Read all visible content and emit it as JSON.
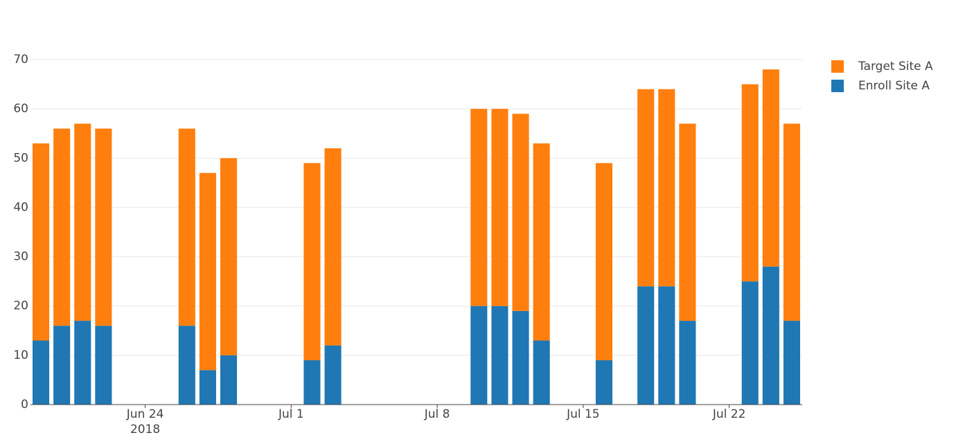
{
  "chart_data": {
    "type": "bar",
    "stacked": true,
    "x": [
      "2018-06-19",
      "2018-06-20",
      "2018-06-21",
      "2018-06-22",
      "2018-06-26",
      "2018-06-27",
      "2018-06-28",
      "2018-07-02",
      "2018-07-03",
      "2018-07-10",
      "2018-07-11",
      "2018-07-12",
      "2018-07-13",
      "2018-07-16",
      "2018-07-18",
      "2018-07-19",
      "2018-07-20",
      "2018-07-23",
      "2018-07-24",
      "2018-07-25"
    ],
    "series": [
      {
        "name": "Enroll Site A",
        "color": "#1f77b4",
        "values": [
          13,
          16,
          17,
          16,
          16,
          7,
          10,
          9,
          12,
          20,
          20,
          19,
          13,
          9,
          24,
          24,
          17,
          25,
          28,
          17
        ]
      },
      {
        "name": "Target Site A",
        "color": "#ff7f0e",
        "values": [
          40,
          40,
          40,
          40,
          40,
          40,
          40,
          40,
          40,
          40,
          40,
          40,
          40,
          40,
          40,
          40,
          40,
          40,
          40,
          40
        ]
      }
    ],
    "xlim": [
      "2018-06-18 12:00",
      "2018-07-25 12:00"
    ],
    "xticks": [
      {
        "value": "2018-06-24",
        "label": "Jun 24",
        "sublabel": "2018"
      },
      {
        "value": "2018-07-01",
        "label": "Jul 1"
      },
      {
        "value": "2018-07-08",
        "label": "Jul 8"
      },
      {
        "value": "2018-07-15",
        "label": "Jul 15"
      },
      {
        "value": "2018-07-22",
        "label": "Jul 22"
      }
    ],
    "ylim": [
      0,
      70
    ],
    "yticks": [
      0,
      10,
      20,
      30,
      40,
      50,
      60,
      70
    ],
    "grid": true,
    "legend": "top-right"
  }
}
